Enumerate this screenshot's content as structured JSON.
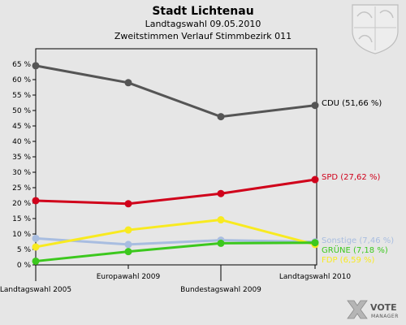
{
  "chart_data": {
    "type": "line",
    "title": "Stadt Lichtenau",
    "subtitle1": "Landtagswahl 09.05.2010",
    "subtitle2": "Zweitstimmen Verlauf Stimmbezirk 011",
    "categories": [
      "Landtagswahl 2005",
      "Europawahl 2009",
      "Bundestagswahl 2009",
      "Landtagswahl 2010"
    ],
    "ylim": [
      0,
      70
    ],
    "yticks": [
      0,
      5,
      10,
      15,
      20,
      25,
      30,
      35,
      40,
      45,
      50,
      55,
      60,
      65
    ],
    "ytick_labels": [
      "0 %",
      "5 %",
      "10 %",
      "15 %",
      "20 %",
      "25 %",
      "30 %",
      "35 %",
      "40 %",
      "45 %",
      "50 %",
      "55 %",
      "60 %",
      "65 %"
    ],
    "grid": false,
    "series": [
      {
        "name": "CDU",
        "label": "CDU (51,66 %)",
        "color": "#555555",
        "values": [
          64.5,
          59.0,
          48.0,
          51.66
        ]
      },
      {
        "name": "SPD",
        "label": "SPD (27,62 %)",
        "color": "#d0021b",
        "values": [
          20.8,
          19.8,
          23.1,
          27.62
        ]
      },
      {
        "name": "Sonstige",
        "label": "Sonstige (7,46 %)",
        "color": "#a8bde0",
        "values": [
          8.6,
          6.6,
          8.0,
          7.46
        ]
      },
      {
        "name": "FDP",
        "label": "FDP (6,59 %)",
        "color": "#f8ea20",
        "values": [
          5.8,
          11.3,
          14.6,
          6.59
        ]
      },
      {
        "name": "GRÜNE",
        "label": "GRÜNE (7,18 %)",
        "color": "#3cc81e",
        "values": [
          1.2,
          4.3,
          7.0,
          7.18
        ]
      }
    ]
  },
  "brand": {
    "name": "VOTE",
    "sub": "MANAGER"
  },
  "icons": {
    "crest": "coat-of-arms-icon",
    "logo": "votemanager-x-icon"
  }
}
